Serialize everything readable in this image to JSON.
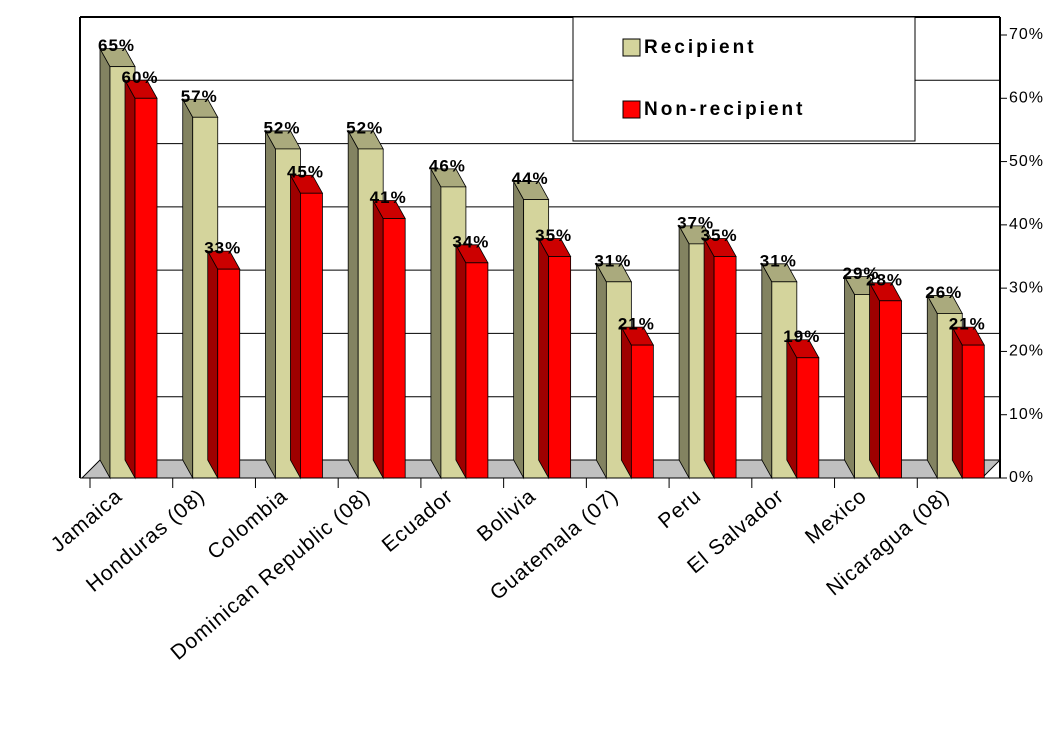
{
  "chart_data": {
    "type": "bar3d",
    "categories": [
      "Jamaica",
      "Honduras (08)",
      "Colombia",
      "Dominican Republic (08)",
      "Ecuador",
      "Bolivia",
      "Guatemala (07)",
      "Peru",
      "El Salvador",
      "Mexico",
      "Nicaragua (08)"
    ],
    "series": [
      {
        "name": "Recipient",
        "color": "#d4d49c",
        "values": [
          65,
          57,
          52,
          52,
          46,
          44,
          31,
          37,
          31,
          29,
          26
        ],
        "value_labels": [
          "65%",
          "57%",
          "52%",
          "52%",
          "46%",
          "44%",
          "31%",
          "37%",
          "31%",
          "29%",
          "26%"
        ]
      },
      {
        "name": "Non-recipient",
        "color": "#ff0000",
        "values": [
          60,
          33,
          45,
          41,
          34,
          35,
          21,
          35,
          19,
          28,
          21
        ],
        "value_labels": [
          "60%",
          "33%",
          "45%",
          "41%",
          "34%",
          "35%",
          "21%",
          "35%",
          "19%",
          "28%",
          "21%"
        ]
      }
    ],
    "ylim": [
      0,
      70
    ],
    "yticks": [
      {
        "value": 0,
        "label": "0%"
      },
      {
        "value": 10,
        "label": "10%"
      },
      {
        "value": 20,
        "label": "20%"
      },
      {
        "value": 30,
        "label": "30%"
      },
      {
        "value": 40,
        "label": "40%"
      },
      {
        "value": 50,
        "label": "50%"
      },
      {
        "value": 60,
        "label": "60%"
      },
      {
        "value": 70,
        "label": "70%"
      }
    ],
    "grid": true,
    "legend": "top-right"
  }
}
